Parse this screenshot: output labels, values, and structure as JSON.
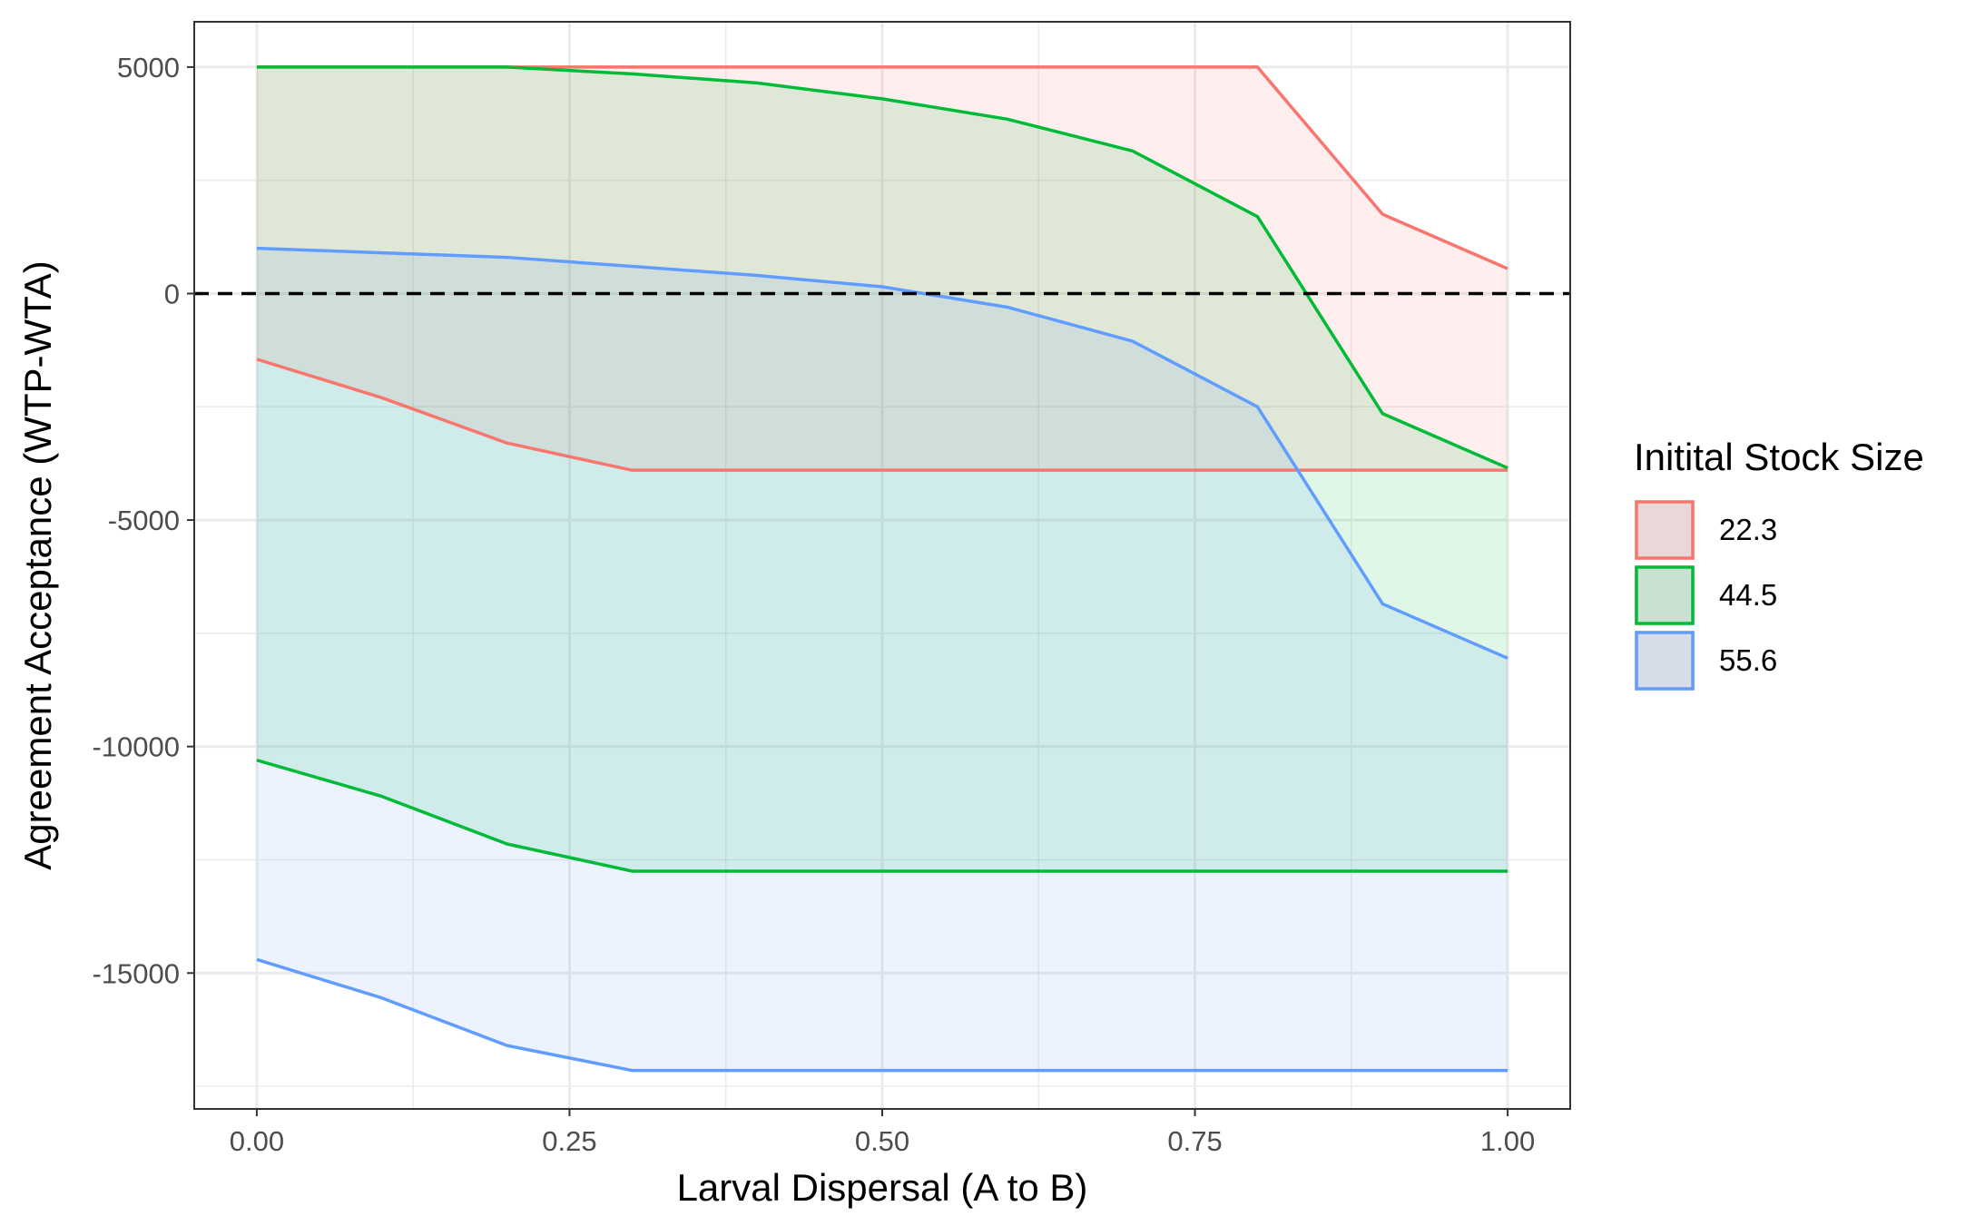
{
  "chart_data": {
    "type": "area",
    "xlabel": "Larval Dispersal (A to B)",
    "ylabel": "Agreement Acceptance (WTP-WTA)",
    "x": [
      0.0,
      0.1,
      0.2,
      0.3,
      0.4,
      0.5,
      0.6,
      0.7,
      0.8,
      0.9,
      1.0
    ],
    "xlim": [
      -0.05,
      1.05
    ],
    "ylim": [
      -18000,
      6000
    ],
    "x_ticks": [
      0.0,
      0.25,
      0.5,
      0.75,
      1.0
    ],
    "x_tick_labels": [
      "0.00",
      "0.25",
      "0.50",
      "0.75",
      "1.00"
    ],
    "y_ticks": [
      -15000,
      -10000,
      -5000,
      0,
      5000
    ],
    "y_tick_labels": [
      "-15000",
      "-10000",
      "-5000",
      "0",
      "5000"
    ],
    "reference_line": {
      "y": 0,
      "style": "dashed",
      "color": "#000000"
    },
    "grid": true,
    "legend_position": "right",
    "legend_title": "Initital Stock Size",
    "series": [
      {
        "name": "22.3",
        "color": "#F8766D",
        "upper": [
          5000,
          5000,
          5000,
          5000,
          5000,
          5000,
          5000,
          5000,
          5000,
          1750,
          550
        ],
        "lower": [
          -1450,
          -2300,
          -3300,
          -3900,
          -3900,
          -3900,
          -3900,
          -3900,
          -3900,
          -3900,
          -3900
        ]
      },
      {
        "name": "44.5",
        "color": "#00BA38",
        "upper": [
          5000,
          5000,
          5000,
          4850,
          4650,
          4300,
          3850,
          3150,
          1700,
          -2650,
          -3850
        ],
        "lower": [
          -10300,
          -11100,
          -12150,
          -12750,
          -12750,
          -12750,
          -12750,
          -12750,
          -12750,
          -12750,
          -12750
        ]
      },
      {
        "name": "55.6",
        "color": "#619CFF",
        "upper": [
          1000,
          900,
          800,
          600,
          400,
          150,
          -300,
          -1050,
          -2500,
          -6850,
          -8050
        ],
        "lower": [
          -14700,
          -15550,
          -16600,
          -17150,
          -17150,
          -17150,
          -17150,
          -17150,
          -17150,
          -17150,
          -17150
        ]
      }
    ]
  }
}
